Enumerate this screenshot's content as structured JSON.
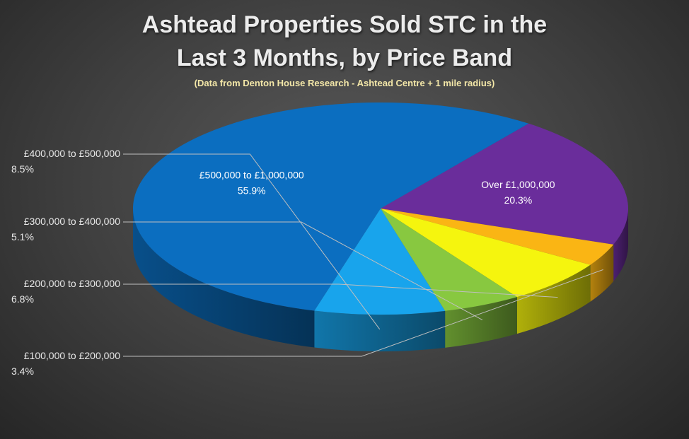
{
  "chart_data": {
    "type": "pie",
    "title": "Ashtead Properties Sold STC in the Last 3 Months, by Price Band",
    "title_lines": [
      "Ashtead Properties Sold STC in the",
      "Last 3 Months, by Price Band"
    ],
    "subtitle": "(Data from Denton House Research - Ashtead Centre + 1 mile radius)",
    "slices": [
      {
        "label": "£500,000 to £1,000,000",
        "value": 55.9,
        "display": "55.9%",
        "color": "#0b6ec0",
        "label_position": "inside"
      },
      {
        "label": "Over £1,000,000",
        "value": 20.3,
        "display": "20.3%",
        "color": "#6a2d9b",
        "label_position": "inside"
      },
      {
        "label": "£100,000 to £200,000",
        "value": 3.4,
        "display": "3.4%",
        "color": "#fab514",
        "label_position": "outside-left"
      },
      {
        "label": "£200,000 to £300,000",
        "value": 6.8,
        "display": "6.8%",
        "color": "#f5f50e",
        "label_position": "outside-left"
      },
      {
        "label": "£300,000 to £400,000",
        "value": 5.1,
        "display": "5.1%",
        "color": "#88c840",
        "label_position": "outside-left"
      },
      {
        "label": "£400,000 to £500,000",
        "value": 8.5,
        "display": "8.5%",
        "color": "#18a4ec",
        "label_position": "outside-left"
      }
    ],
    "style": "3d-tilted",
    "legend": "none"
  }
}
